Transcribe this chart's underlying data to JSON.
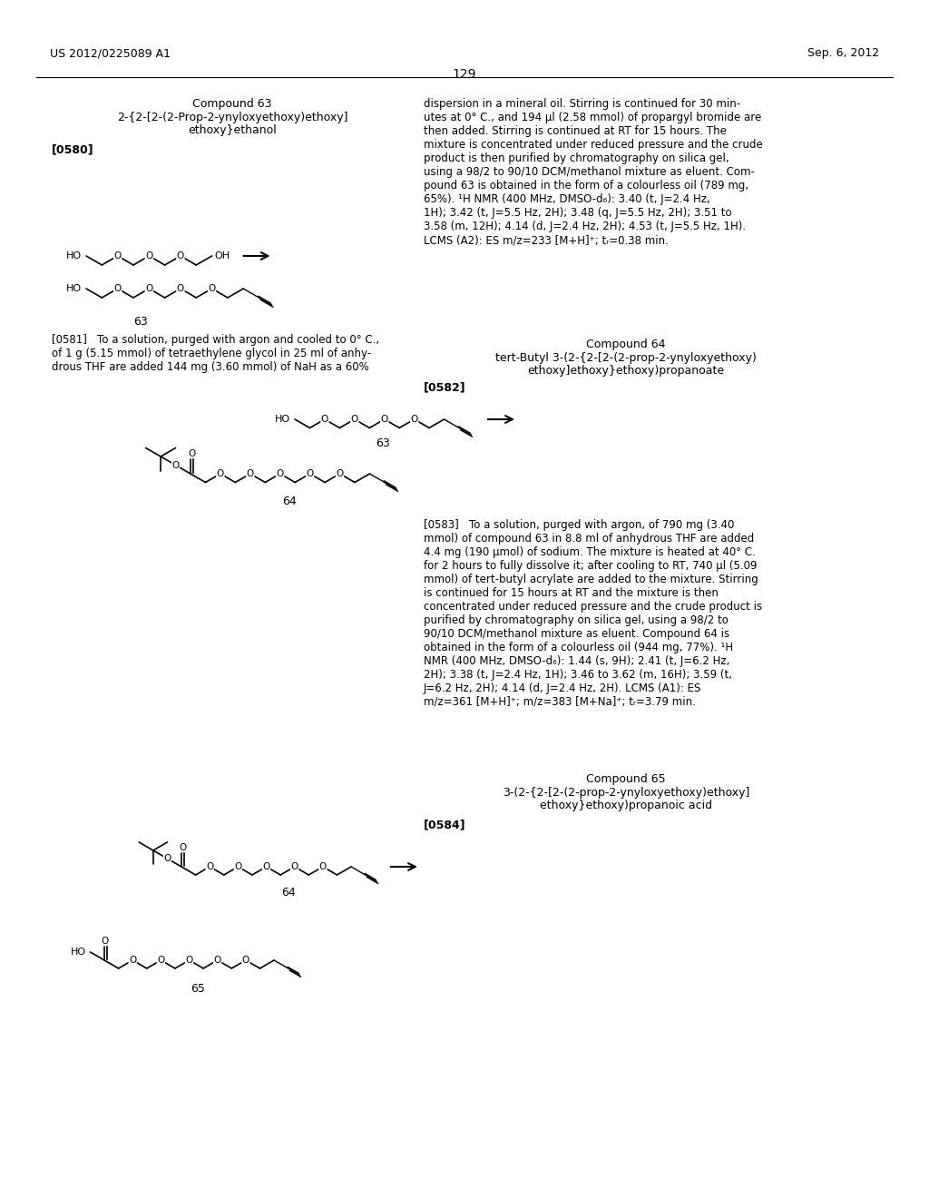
{
  "page_number": "129",
  "header_left": "US 2012/0225089 A1",
  "header_right": "Sep. 6, 2012",
  "background_color": "#ffffff",
  "compound63_title": "Compound 63",
  "compound63_name1": "2-{2-[2-(2-Prop-2-ynyloxyethoxy)ethoxy]",
  "compound63_name2": "ethoxy}ethanol",
  "compound63_label": "[0580]",
  "compound63_num": "63",
  "rc_text": "dispersion in a mineral oil. Stirring is continued for 30 min-\nutes at 0° C., and 194 μl (2.58 mmol) of propargyl bromide are\nthen added. Stirring is continued at RT for 15 hours. The\nmixture is concentrated under reduced pressure and the crude\nproduct is then purified by chromatography on silica gel,\nusing a 98/2 to 90/10 DCM/methanol mixture as eluent. Com-\npound 63 is obtained in the form of a colourless oil (789 mg,\n65%). ¹H NMR (400 MHz, DMSO-d₆): 3.40 (t, J=2.4 Hz,\n1H); 3.42 (t, J=5.5 Hz, 2H); 3.48 (q, J=5.5 Hz, 2H); 3.51 to\n3.58 (m, 12H); 4.14 (d, J=2.4 Hz, 2H); 4.53 (t, J=5.5 Hz, 1H).\nLCMS (A2): ES m/z=233 [M+H]⁺; tᵣ=0.38 min.",
  "p0581": "[0581]   To a solution, purged with argon and cooled to 0° C.,\nof 1 g (5.15 mmol) of tetraethylene glycol in 25 ml of anhy-\ndrous THF are added 144 mg (3.60 mmol) of NaH as a 60%",
  "compound64_title": "Compound 64",
  "compound64_name1": "tert-Butyl 3-(2-{2-[2-(2-prop-2-ynyloxyethoxy)",
  "compound64_name2": "ethoxy]ethoxy}ethoxy)propanoate",
  "compound64_label": "[0582]",
  "compound64_num": "64",
  "p0583": "[0583]   To a solution, purged with argon, of 790 mg (3.40\nmmol) of compound 63 in 8.8 ml of anhydrous THF are added\n4.4 mg (190 μmol) of sodium. The mixture is heated at 40° C.\nfor 2 hours to fully dissolve it; after cooling to RT, 740 μl (5.09\nmmol) of tert-butyl acrylate are added to the mixture. Stirring\nis continued for 15 hours at RT and the mixture is then\nconcentrated under reduced pressure and the crude product is\npurified by chromatography on silica gel, using a 98/2 to\n90/10 DCM/methanol mixture as eluent. Compound 64 is\nobtained in the form of a colourless oil (944 mg, 77%). ¹H\nNMR (400 MHz, DMSO-d₆): 1.44 (s, 9H); 2.41 (t, J=6.2 Hz,\n2H); 3.38 (t, J=2.4 Hz, 1H); 3.46 to 3.62 (m, 16H); 3.59 (t,\nJ=6.2 Hz, 2H); 4.14 (d, J=2.4 Hz, 2H). LCMS (A1): ES\nm/z=361 [M+H]⁺; m/z=383 [M+Na]⁺; tᵣ=3.79 min.",
  "compound65_title": "Compound 65",
  "compound65_name1": "3-(2-{2-[2-(2-prop-2-ynyloxyethoxy)ethoxy]",
  "compound65_name2": "ethoxy}ethoxy)propanoic acid",
  "compound65_label": "[0584]",
  "compound65_num": "65"
}
